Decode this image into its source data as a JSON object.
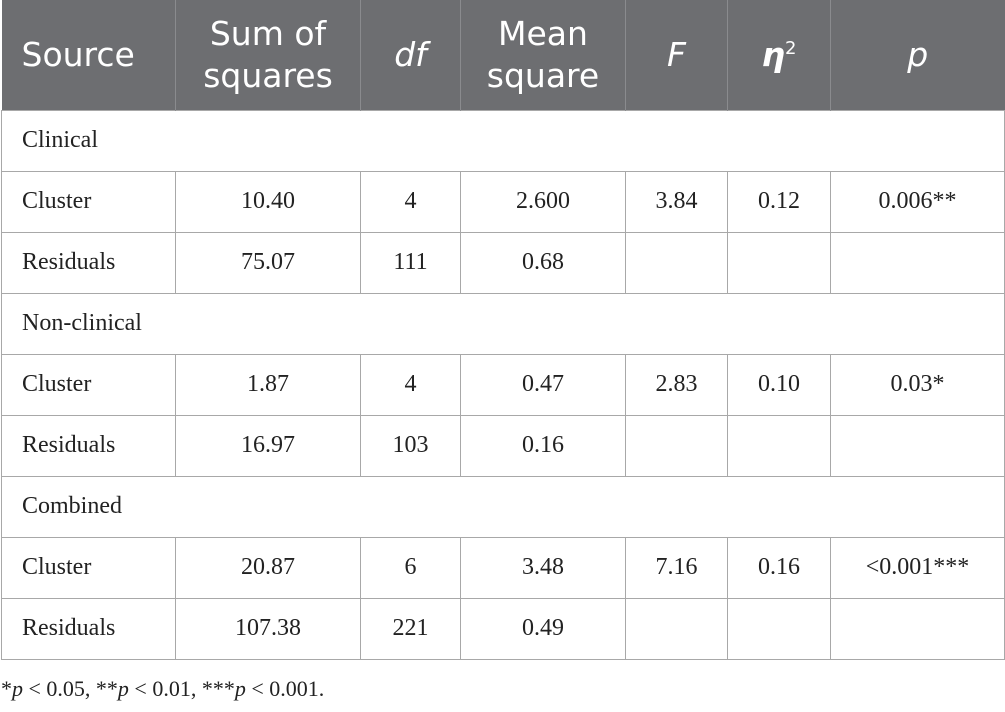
{
  "table": {
    "header": [
      {
        "text": "Source"
      },
      {
        "text": "Sum of squares"
      },
      {
        "text": "df",
        "italic": true
      },
      {
        "text": "Mean square"
      },
      {
        "text": "F",
        "italic": true
      },
      {
        "text": "η",
        "sup": "2",
        "italic": true,
        "bold": true
      },
      {
        "text": "p",
        "italic": true
      }
    ],
    "sections": [
      {
        "label": "Clinical",
        "rows": [
          [
            "Cluster",
            "10.40",
            "4",
            "2.600",
            "3.84",
            "0.12",
            "0.006**"
          ],
          [
            "Residuals",
            "75.07",
            "111",
            "0.68",
            null,
            null,
            null
          ]
        ]
      },
      {
        "label": "Non-clinical",
        "rows": [
          [
            "Cluster",
            "1.87",
            "4",
            "0.47",
            "2.83",
            "0.10",
            "0.03*"
          ],
          [
            "Residuals",
            "16.97",
            "103",
            "0.16",
            null,
            null,
            null
          ]
        ]
      },
      {
        "label": "Combined",
        "rows": [
          [
            "Cluster",
            "20.87",
            "6",
            "3.48",
            "7.16",
            "0.16",
            "<0.001***"
          ],
          [
            "Residuals",
            "107.38",
            "221",
            "0.49",
            null,
            null,
            null
          ]
        ]
      }
    ],
    "footnote": [
      "*",
      "p",
      " < 0.05, **",
      "p",
      " < 0.01, ***",
      "p",
      " < 0.001."
    ]
  }
}
